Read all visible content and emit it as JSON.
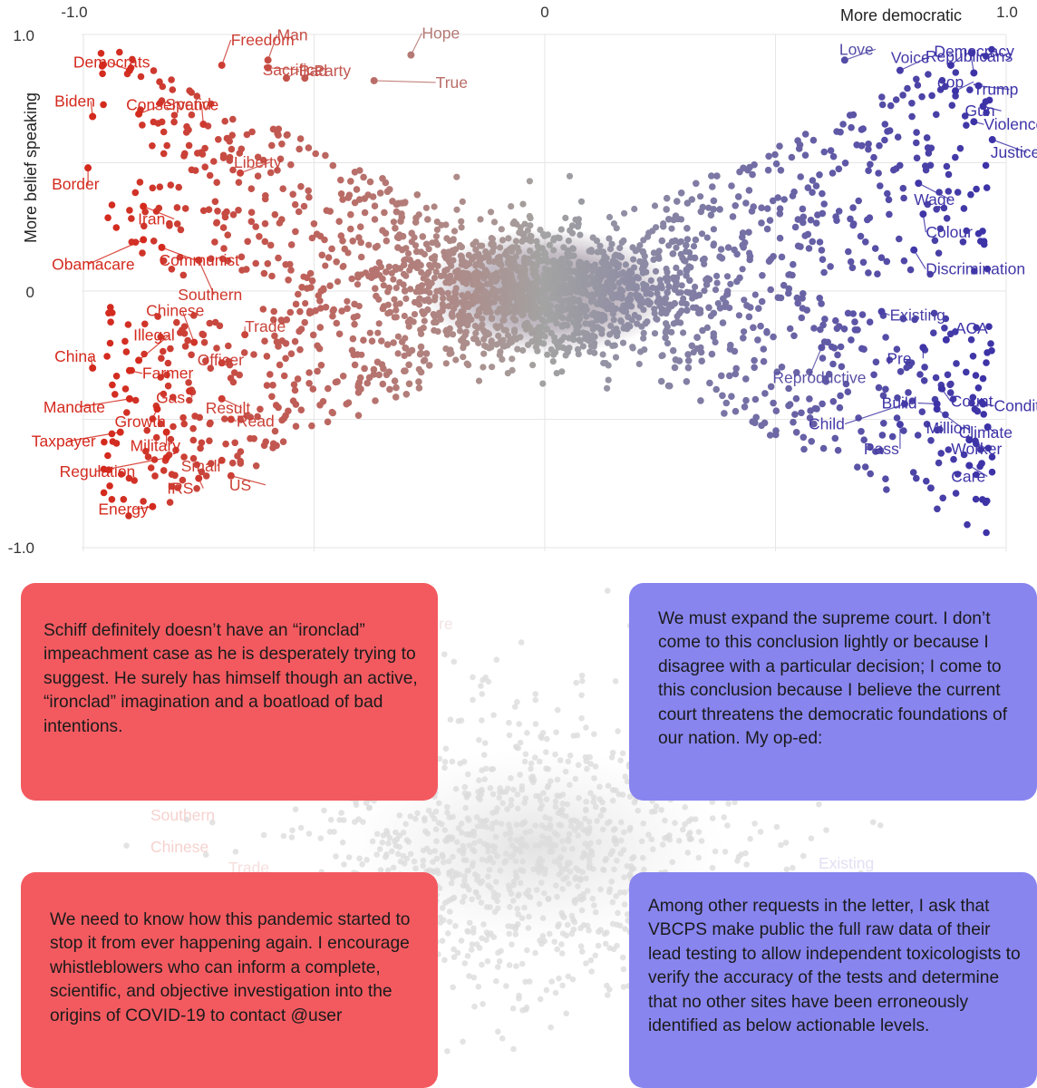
{
  "chart_data": {
    "type": "scatter",
    "title": "",
    "xlabel": "More democratic",
    "ylabel": "More belief speaking",
    "xlim": [
      -1.0,
      1.0
    ],
    "ylim": [
      -1.0,
      1.0
    ],
    "xticks": [
      "-1.0",
      "0",
      "1.0"
    ],
    "yticks": [
      "1.0",
      "0",
      "-1.0"
    ],
    "grid": true,
    "color_scale": {
      "left": "#d42a1e",
      "mid": "#a3a3a3",
      "right": "#3d33a7"
    },
    "labeled_points": [
      {
        "word": "Freedom",
        "x": -0.7,
        "y": 0.88,
        "side": "left"
      },
      {
        "word": "Man",
        "x": -0.6,
        "y": 0.9,
        "side": "left"
      },
      {
        "word": "Hope",
        "x": -0.29,
        "y": 0.92,
        "side": "left"
      },
      {
        "word": "Democrats",
        "x": -0.9,
        "y": 0.86,
        "side": "left"
      },
      {
        "word": "Sacrifice",
        "x": -0.6,
        "y": 0.87,
        "side": "left"
      },
      {
        "word": "Bad",
        "x": -0.56,
        "y": 0.83,
        "side": "left"
      },
      {
        "word": "Party",
        "x": -0.52,
        "y": 0.83,
        "side": "left"
      },
      {
        "word": "True",
        "x": -0.37,
        "y": 0.82,
        "side": "left"
      },
      {
        "word": "Conservative",
        "x": -0.88,
        "y": 0.69,
        "side": "left"
      },
      {
        "word": "Biden",
        "x": -0.98,
        "y": 0.68,
        "side": "left"
      },
      {
        "word": "Spend",
        "x": -0.74,
        "y": 0.65,
        "side": "left"
      },
      {
        "word": "Liberty",
        "x": -0.66,
        "y": 0.46,
        "side": "left"
      },
      {
        "word": "Border",
        "x": -0.99,
        "y": 0.48,
        "side": "left"
      },
      {
        "word": "Iran",
        "x": -0.87,
        "y": 0.33,
        "side": "left"
      },
      {
        "word": "Obamacare",
        "x": -0.87,
        "y": 0.2,
        "side": "left"
      },
      {
        "word": "Communist",
        "x": -0.83,
        "y": 0.17,
        "side": "left"
      },
      {
        "word": "Southern",
        "x": -0.75,
        "y": 0.12,
        "side": "left"
      },
      {
        "word": "Chinese",
        "x": -0.76,
        "y": -0.2,
        "side": "left"
      },
      {
        "word": "Trade",
        "x": -0.65,
        "y": -0.17,
        "side": "left"
      },
      {
        "word": "Illegal",
        "x": -0.88,
        "y": -0.27,
        "side": "left"
      },
      {
        "word": "China",
        "x": -0.98,
        "y": -0.3,
        "side": "left"
      },
      {
        "word": "Officer",
        "x": -0.7,
        "y": -0.28,
        "side": "left"
      },
      {
        "word": "Farmer",
        "x": -0.9,
        "y": -0.31,
        "side": "left"
      },
      {
        "word": "Gas",
        "x": -0.77,
        "y": -0.39,
        "side": "left"
      },
      {
        "word": "Result",
        "x": -0.7,
        "y": -0.42,
        "side": "left"
      },
      {
        "word": "Mandate",
        "x": -0.9,
        "y": -0.42,
        "side": "left"
      },
      {
        "word": "Growth",
        "x": -0.84,
        "y": -0.46,
        "side": "left"
      },
      {
        "word": "Read",
        "x": -0.68,
        "y": -0.5,
        "side": "left"
      },
      {
        "word": "Taxpayer",
        "x": -0.92,
        "y": -0.55,
        "side": "left"
      },
      {
        "word": "Military",
        "x": -0.82,
        "y": -0.55,
        "side": "left"
      },
      {
        "word": "Regulation",
        "x": -0.82,
        "y": -0.65,
        "side": "left"
      },
      {
        "word": "Small",
        "x": -0.7,
        "y": -0.66,
        "side": "left"
      },
      {
        "word": "IRS",
        "x": -0.75,
        "y": -0.73,
        "side": "left"
      },
      {
        "word": "US",
        "x": -0.68,
        "y": -0.72,
        "side": "left"
      },
      {
        "word": "Energy",
        "x": -0.85,
        "y": -0.84,
        "side": "left"
      },
      {
        "word": "Love",
        "x": 0.65,
        "y": 0.9,
        "side": "right"
      },
      {
        "word": "Republicans",
        "x": 0.88,
        "y": 0.88,
        "side": "right"
      },
      {
        "word": "Voice",
        "x": 0.77,
        "y": 0.86,
        "side": "right"
      },
      {
        "word": "Democracy",
        "x": 0.93,
        "y": 0.85,
        "side": "right"
      },
      {
        "word": "gop",
        "x": 0.89,
        "y": 0.78,
        "side": "right"
      },
      {
        "word": "Trump",
        "x": 0.94,
        "y": 0.8,
        "side": "right"
      },
      {
        "word": "Violence",
        "x": 0.93,
        "y": 0.66,
        "side": "right"
      },
      {
        "word": "Gun",
        "x": 0.95,
        "y": 0.72,
        "side": "right"
      },
      {
        "word": "Justice",
        "x": 0.97,
        "y": 0.59,
        "side": "right"
      },
      {
        "word": "Wage",
        "x": 0.81,
        "y": 0.42,
        "side": "right"
      },
      {
        "word": "Colour",
        "x": 0.82,
        "y": 0.3,
        "side": "right"
      },
      {
        "word": "Discrimination",
        "x": 0.8,
        "y": 0.16,
        "side": "right"
      },
      {
        "word": "Existing",
        "x": 0.73,
        "y": -0.08,
        "side": "right"
      },
      {
        "word": "ACA",
        "x": 0.87,
        "y": -0.19,
        "side": "right"
      },
      {
        "word": "Pre",
        "x": 0.82,
        "y": -0.22,
        "side": "right"
      },
      {
        "word": "Count",
        "x": 0.86,
        "y": -0.38,
        "side": "right"
      },
      {
        "word": "Reproductive",
        "x": 0.6,
        "y": -0.22,
        "side": "right"
      },
      {
        "word": "Build",
        "x": 0.85,
        "y": -0.44,
        "side": "right"
      },
      {
        "word": "Condition",
        "x": 0.95,
        "y": -0.44,
        "side": "right"
      },
      {
        "word": "Child",
        "x": 0.78,
        "y": -0.44,
        "side": "right"
      },
      {
        "word": "Million",
        "x": 0.85,
        "y": -0.46,
        "side": "right"
      },
      {
        "word": "Climate",
        "x": 0.96,
        "y": -0.53,
        "side": "right"
      },
      {
        "word": "Pass",
        "x": 0.77,
        "y": -0.52,
        "side": "right"
      },
      {
        "word": "Worker",
        "x": 0.92,
        "y": -0.58,
        "side": "right"
      },
      {
        "word": "Care",
        "x": 0.92,
        "y": -0.68,
        "side": "right"
      }
    ],
    "background_points": "approximately 2,500 unlabeled word points; dense cluster near (0, 0), fanning out toward the corners; colour shifts from red (left) through grey (centre) to blue-purple (right)"
  },
  "examples": [
    {
      "side": "left",
      "color": "#f35a60",
      "text": "Schiff definitely doesn’t have an “ironclad” impeachment case as he is desperately trying to suggest. He surely has himself though an active, “ironclad” imagination and a boatload of bad intentions."
    },
    {
      "side": "right",
      "color": "#8885ef",
      "text": "We must expand the supreme court. I don’t come to this conclusion lightly or because I disagree with a particular decision; I come to this conclusion because I believe the current court threatens the democratic foundations of our nation. My op-ed:"
    },
    {
      "side": "left",
      "color": "#f35a60",
      "text": "We need to know how this pandemic started to stop it from ever happening again. I encourage whistleblowers who can inform a complete, scientific, and objective investigation into the origins of COVID-19 to contact @user"
    },
    {
      "side": "right",
      "color": "#8885ef",
      "text": "Among other requests in the letter, I ask that VBCPS make public the full raw data of their lead testing to allow independent toxicologists to verify the accuracy of the tests and determine that no other sites have been erroneously identified as below actionable levels."
    }
  ]
}
